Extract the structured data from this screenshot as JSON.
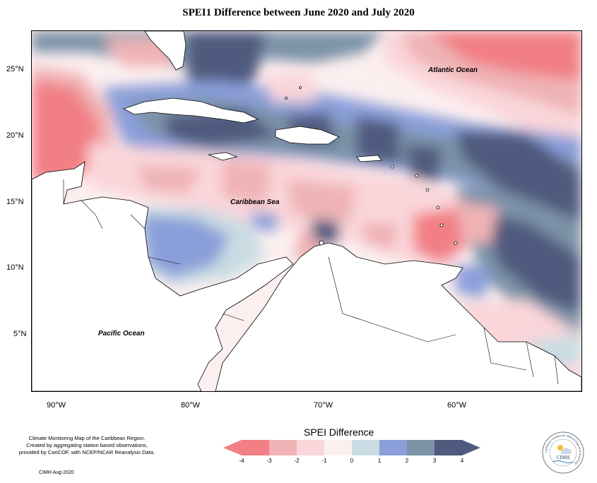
{
  "title": "SPEI1 Difference between June 2020 and July 2020",
  "map": {
    "lat_labels": [
      "25°N",
      "20°N",
      "15°N",
      "10°N",
      "5°N"
    ],
    "lon_labels": [
      "90°W",
      "80°W",
      "70°W",
      "60°W"
    ],
    "places": {
      "atlantic": "Atlantic Ocean",
      "caribbean": "Caribbean Sea",
      "pacific": "Pacific Ocean"
    }
  },
  "credits": {
    "lines": [
      "Climate Monitoring Map of the Caribbean Region.",
      "Created by aggregating station based observations,",
      "provided by CariCOF, with NCEP/NCAR Reanalysis Data."
    ],
    "footnote": "CIMH Aug-2020"
  },
  "legend": {
    "title": "SPEI Difference",
    "ticks": [
      "-4",
      "-3",
      "-2",
      "-1",
      "0",
      "1",
      "2",
      "3",
      "4"
    ],
    "colors": [
      "#f17f85",
      "#efb3b5",
      "#fad6da",
      "#fceff0",
      "#c9dce3",
      "#8a9fd9",
      "#7c93a8",
      "#4f5a7e"
    ]
  },
  "logo": {
    "center_text": "CIMH",
    "ring_text": "Caribbean Institute for Meteorology and Hydrology"
  }
}
